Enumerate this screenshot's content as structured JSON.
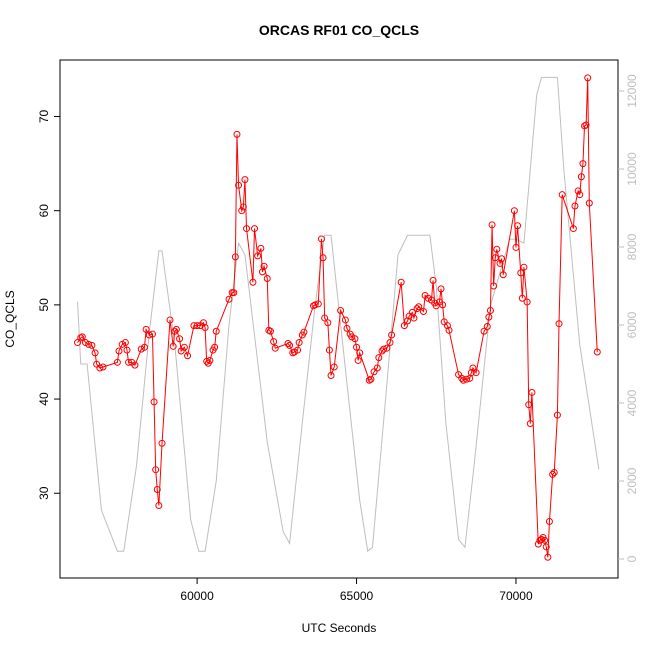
{
  "chart_data": {
    "type": "line",
    "title": "ORCAS RF01 CO_QCLS",
    "x_label": "UTC Seconds",
    "y_label": "CO_QCLS",
    "xlim": [
      55700,
      73200
    ],
    "xticks": [
      60000,
      65000,
      70000
    ],
    "ylim": [
      21,
      76
    ],
    "yticks": [
      30,
      40,
      50,
      60,
      70
    ],
    "y2lim": [
      -487,
      12795
    ],
    "y2ticks": [
      0,
      2000,
      4000,
      6000,
      8000,
      10000,
      12000
    ],
    "series": [
      {
        "color": "#ff0000",
        "markers": true,
        "x": [
          56250,
          56350,
          56400,
          56500,
          56600,
          56700,
          56800,
          56850,
          56950,
          57050,
          57500,
          57550,
          57650,
          57750,
          57800,
          57850,
          57950,
          58050,
          58250,
          58350,
          58400,
          58500,
          58600,
          58650,
          58700,
          58750,
          58800,
          58900,
          59150,
          59250,
          59300,
          59350,
          59450,
          59500,
          59600,
          59700,
          59900,
          60000,
          60100,
          60200,
          60250,
          60300,
          60350,
          60400,
          60500,
          60550,
          60600,
          61000,
          61100,
          61150,
          61200,
          61250,
          61300,
          61400,
          61450,
          61500,
          61550,
          61750,
          61800,
          61900,
          62000,
          62050,
          62100,
          62200,
          62250,
          62300,
          62400,
          62450,
          62850,
          62900,
          63000,
          63050,
          63150,
          63200,
          63300,
          63350,
          63650,
          63700,
          63800,
          63900,
          63950,
          64000,
          64100,
          64150,
          64200,
          64300,
          64500,
          64650,
          64700,
          64800,
          64850,
          64950,
          65000,
          65050,
          65100,
          65400,
          65450,
          65550,
          65650,
          65700,
          65800,
          65850,
          65950,
          66050,
          66100,
          66400,
          66500,
          66600,
          66650,
          66750,
          66800,
          66900,
          66950,
          67100,
          67150,
          67250,
          67350,
          67400,
          67450,
          67500,
          67600,
          67650,
          67700,
          67750,
          67850,
          67900,
          68200,
          68300,
          68350,
          68450,
          68550,
          68600,
          68650,
          68750,
          69000,
          69100,
          69150,
          69200,
          69250,
          69300,
          69350,
          69400,
          69500,
          69550,
          69600,
          69950,
          70000,
          70050,
          70150,
          70200,
          70250,
          70350,
          70400,
          70450,
          70500,
          70700,
          70750,
          70800,
          70850,
          70900,
          70950,
          71000,
          71050,
          71150,
          71200,
          71300,
          71350,
          71450,
          71800,
          71850,
          71950,
          72000,
          72050,
          72100,
          72150,
          72200,
          72250,
          72300,
          72550
        ],
        "values": [
          46,
          46.5,
          46.6,
          46,
          45.8,
          45.7,
          44.9,
          43.7,
          43.3,
          43.4,
          43.9,
          45.1,
          45.8,
          46,
          45.2,
          43.9,
          43.9,
          43.6,
          45.3,
          45.5,
          47.4,
          46.8,
          46.9,
          39.7,
          32.5,
          30.4,
          28.7,
          35.3,
          48.4,
          45.6,
          47.2,
          47.4,
          46.4,
          45.1,
          45.5,
          44.6,
          47.8,
          47.8,
          47.8,
          48.1,
          47.6,
          44,
          43.8,
          44.1,
          45.2,
          45.5,
          47.2,
          50.6,
          51.3,
          51.3,
          55.1,
          68.1,
          62.7,
          60,
          60.4,
          63.3,
          58.1,
          52.4,
          58.1,
          55.2,
          56,
          53.5,
          54.1,
          52.8,
          47.3,
          47.2,
          46.1,
          45.4,
          45.9,
          45.7,
          44.9,
          45,
          45.2,
          46,
          46.8,
          47.1,
          49.9,
          50,
          50.1,
          57,
          55,
          48.6,
          48.1,
          45.2,
          42.5,
          43.4,
          49.4,
          48.4,
          47.5,
          46.9,
          46.6,
          46.4,
          45.5,
          44.1,
          44.9,
          42,
          42.1,
          42.9,
          43.3,
          44.4,
          45.1,
          45.3,
          45.4,
          46,
          46.8,
          52.4,
          47.8,
          48.3,
          48.8,
          49.2,
          48.6,
          49.6,
          49.8,
          49.3,
          51,
          50.7,
          50.5,
          52.6,
          50.2,
          49.9,
          50.3,
          51.7,
          50,
          48.2,
          47.8,
          47.3,
          42.6,
          42.2,
          42,
          42.1,
          42.2,
          42.8,
          43.3,
          42.8,
          47.2,
          47.7,
          48.7,
          49.4,
          58.5,
          52,
          55,
          55.9,
          54.4,
          54.9,
          53.2,
          60,
          56.1,
          58.4,
          53.4,
          50.7,
          54,
          50.3,
          39.4,
          37.4,
          40.7,
          24.6,
          25,
          25.1,
          25.3,
          25,
          24.3,
          23.2,
          27,
          32,
          32.2,
          38.3,
          48,
          61.7,
          58.1,
          60.5,
          62.1,
          61.7,
          63.6,
          65,
          69,
          69.1,
          74.1,
          60.8,
          45
        ]
      },
      {
        "color": "#bebebe",
        "markers": false,
        "axis": "y2",
        "x": [
          56250,
          56350,
          56550,
          57000,
          57500,
          57700,
          58100,
          58500,
          58800,
          58900,
          59300,
          59800,
          60050,
          60250,
          60600,
          61000,
          61300,
          61500,
          62200,
          62700,
          62900,
          63300,
          63700,
          64000,
          64200,
          64700,
          65100,
          65350,
          65500,
          65900,
          66300,
          66600,
          67300,
          67500,
          67800,
          68200,
          68400,
          68700,
          69200,
          69800,
          70000,
          70250,
          70650,
          70800,
          71300,
          71500,
          72000,
          72600
        ],
        "values": [
          6600,
          5000,
          5000,
          1250,
          200,
          200,
          2400,
          5800,
          7900,
          7900,
          5500,
          1000,
          200,
          200,
          2000,
          6000,
          8100,
          7800,
          3000,
          700,
          400,
          3500,
          6500,
          8300,
          8300,
          4500,
          1500,
          200,
          300,
          4000,
          7800,
          8300,
          8300,
          7000,
          3500,
          500,
          300,
          2500,
          6500,
          8200,
          8200,
          8100,
          11900,
          12350,
          12350,
          10000,
          5500,
          2300
        ]
      }
    ]
  }
}
